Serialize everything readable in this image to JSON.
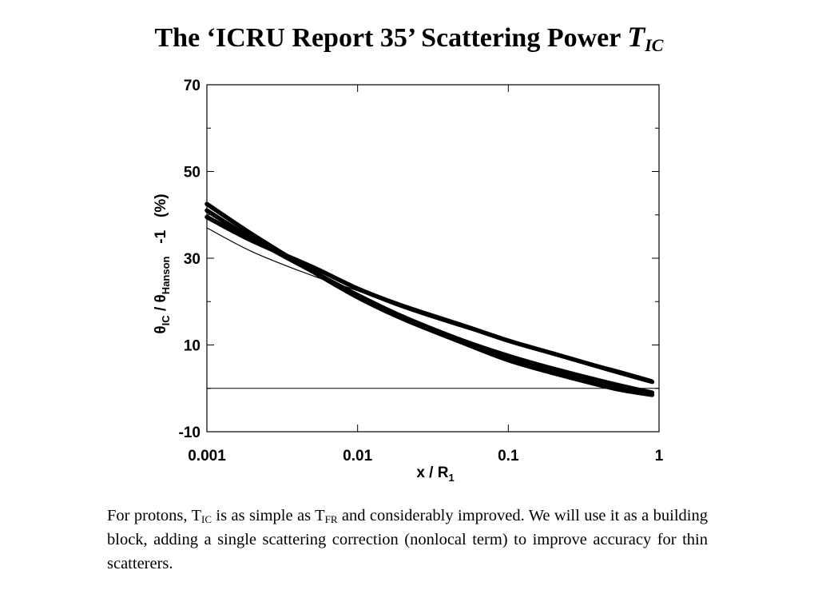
{
  "slide": {
    "title_main": "The ‘ICRU Report 35’ Scattering Power",
    "title_var": "T",
    "title_var_sub": "IC"
  },
  "caption": {
    "part1": "For protons, T",
    "sub1": "IC",
    "part2": " is as simple as T",
    "sub2": "FR",
    "part3": " and considerably improved. We will use it as a building block, adding a single scattering correction (nonlocal term) to improve accuracy for thin scatterers."
  },
  "chart_data": {
    "type": "line",
    "title": "",
    "xlabel": {
      "text": "x / R",
      "sub": "1"
    },
    "ylabel": {
      "theta1": "θ",
      "sub1": "IC",
      "slash": " / ",
      "theta2": "θ",
      "sub2": "Hanson",
      "tail": "   -1   (%)"
    },
    "x_scale": "log",
    "xlim": [
      0.001,
      1
    ],
    "ylim": [
      -10,
      70
    ],
    "x_ticks": [
      0.001,
      0.01,
      0.1,
      1
    ],
    "x_tick_labels": [
      "0.001",
      "0.01",
      "0.1",
      "1"
    ],
    "y_ticks": [
      -10,
      10,
      30,
      50,
      70
    ],
    "y_tick_labels": [
      "-10",
      "10",
      "30",
      "50",
      "70"
    ],
    "y_minor_ticks": [
      0,
      20,
      40,
      60
    ],
    "grid": false,
    "legend": "none",
    "reference_line": 0,
    "series": [
      {
        "color": "#000000",
        "weight": "thick",
        "x": [
          0.001,
          0.002,
          0.005,
          0.01,
          0.02,
          0.05,
          0.1,
          0.2,
          0.5,
          0.9
        ],
        "y": [
          42.5,
          35.5,
          27,
          21,
          16,
          10.5,
          6.5,
          3.5,
          0,
          -1.5
        ]
      },
      {
        "color": "#000000",
        "weight": "thick",
        "x": [
          0.001,
          0.002,
          0.005,
          0.01,
          0.02,
          0.05,
          0.1,
          0.2,
          0.5,
          0.9
        ],
        "y": [
          41,
          34.5,
          27,
          21.5,
          16.5,
          11,
          7.5,
          4.5,
          1,
          -1
        ]
      },
      {
        "color": "#000000",
        "weight": "thick",
        "x": [
          0.001,
          0.002,
          0.005,
          0.01,
          0.02,
          0.05,
          0.1,
          0.2,
          0.5,
          0.9
        ],
        "y": [
          39.5,
          34,
          28,
          23,
          19,
          14.5,
          11,
          8,
          4,
          1.5
        ]
      },
      {
        "color": "#000000",
        "weight": "thin",
        "x": [
          0.001,
          0.002,
          0.005,
          0.01,
          0.02,
          0.05,
          0.1,
          0.2,
          0.5,
          0.9
        ],
        "y": [
          37,
          31.5,
          26,
          22.5,
          18.5,
          14,
          11,
          8,
          4.5,
          2
        ]
      }
    ]
  }
}
